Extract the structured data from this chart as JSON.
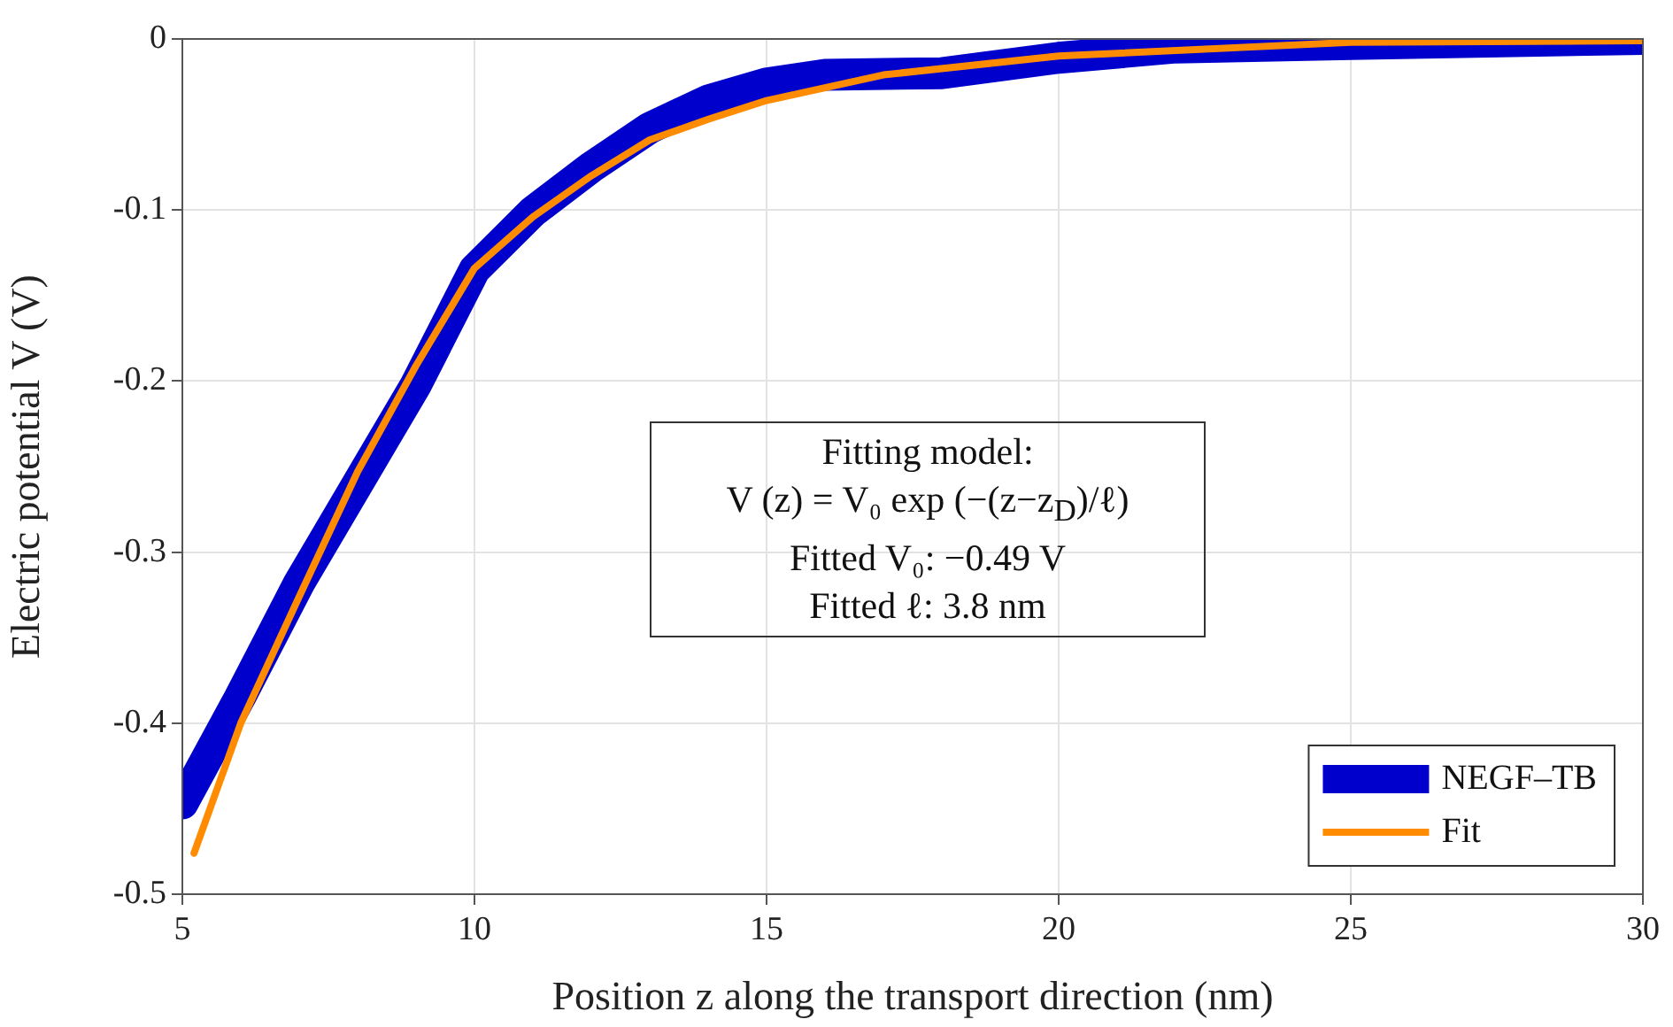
{
  "chart_data": {
    "type": "line",
    "xlabel": "Position z along the transport direction (nm)",
    "ylabel": "Electric potential V (V)",
    "xlim": [
      5,
      30
    ],
    "xticks": [
      5,
      10,
      15,
      20,
      25,
      30
    ],
    "ylim": [
      -0.5,
      0
    ],
    "yticks": [
      -0.5,
      -0.4,
      -0.3,
      -0.2,
      -0.1,
      0
    ],
    "grid": true,
    "legend": "bottom right",
    "marker": "none",
    "line_style": "solid",
    "series": [
      {
        "name": "NEGF–TB",
        "color": "#0000cc",
        "x": [
          5,
          6,
          7,
          8,
          9,
          10,
          11,
          12,
          13,
          14,
          15,
          16,
          18,
          20,
          22,
          25,
          30
        ],
        "values": [
          -0.447,
          -0.384,
          -0.318,
          -0.26,
          -0.202,
          -0.135,
          -0.101,
          -0.075,
          -0.052,
          -0.036,
          -0.026,
          -0.021,
          -0.02,
          -0.011,
          -0.005,
          -0.003,
          0
        ]
      },
      {
        "name": "Fit",
        "color": "#ff8c00",
        "x": [
          5.2,
          6,
          7,
          8,
          9,
          10,
          11,
          12,
          13,
          14,
          15,
          17,
          20,
          25,
          30
        ],
        "values": [
          -0.476,
          -0.4,
          -0.326,
          -0.253,
          -0.191,
          -0.134,
          -0.104,
          -0.08,
          -0.059,
          -0.047,
          -0.036,
          -0.021,
          -0.01,
          -0.002,
          -0.001
        ]
      }
    ],
    "annotations": [
      "Fitting model:",
      "V (z) = V₀ exp (−(z−z$_{D}$)/ℓ)",
      "Fitted V₀: −0.49 V",
      "Fitted ℓ: 3.8 nm"
    ]
  }
}
